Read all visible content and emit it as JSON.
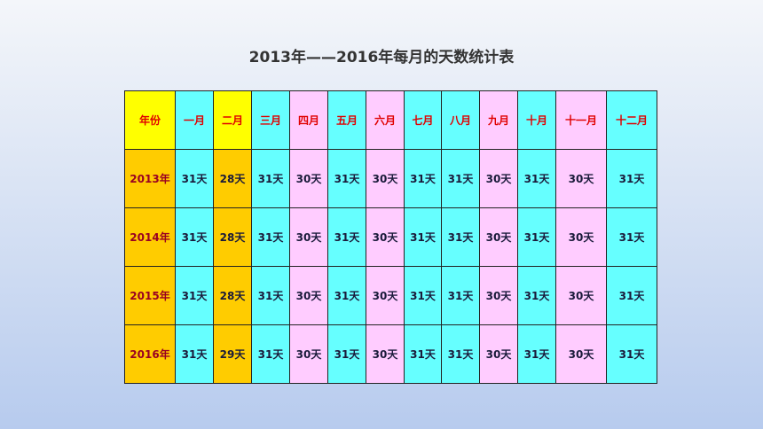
{
  "title": "2013年——2016年每月的天数统计表",
  "table": {
    "header": [
      "年份",
      "一月",
      "二月",
      "三月",
      "四月",
      "五月",
      "六月",
      "七月",
      "八月",
      "九月",
      "十月",
      "十一月",
      "十二月"
    ],
    "rows": [
      [
        "2013年",
        "31天",
        "28天",
        "31天",
        "30天",
        "31天",
        "30天",
        "31天",
        "31天",
        "30天",
        "31天",
        "30天",
        "31天"
      ],
      [
        "2014年",
        "31天",
        "28天",
        "31天",
        "30天",
        "31天",
        "30天",
        "31天",
        "31天",
        "30天",
        "31天",
        "30天",
        "31天"
      ],
      [
        "2015年",
        "31天",
        "28天",
        "31天",
        "30天",
        "31天",
        "30天",
        "31天",
        "31天",
        "30天",
        "31天",
        "30天",
        "31天"
      ],
      [
        "2016年",
        "31天",
        "29天",
        "31天",
        "30天",
        "31天",
        "30天",
        "31天",
        "31天",
        "30天",
        "31天",
        "30天",
        "31天"
      ]
    ]
  }
}
